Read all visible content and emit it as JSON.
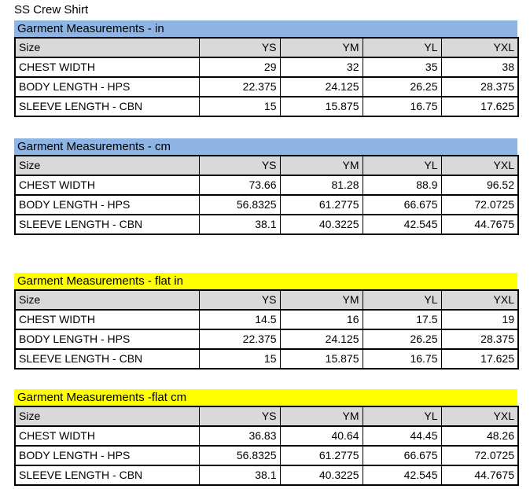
{
  "page_title": "SS Crew Shirt",
  "colors": {
    "section_header_blue": "#8DB4E2",
    "section_header_yellow": "#FFFF00",
    "column_header_gray": "#D9D9D9",
    "table_border": "#000000",
    "text": "#000000"
  },
  "tables": [
    {
      "title": "Garment Measurements - in",
      "header_style": "blue",
      "columns": [
        "Size",
        "YS",
        "YM",
        "YL",
        "YXL"
      ],
      "rows": [
        {
          "label": "CHEST WIDTH",
          "values": [
            "29",
            "32",
            "35",
            "38"
          ]
        },
        {
          "label": "BODY LENGTH - HPS",
          "values": [
            "22.375",
            "24.125",
            "26.25",
            "28.375"
          ]
        },
        {
          "label": "SLEEVE LENGTH - CBN",
          "values": [
            "15",
            "15.875",
            "16.75",
            "17.625"
          ]
        }
      ]
    },
    {
      "title": "Garment Measurements - cm",
      "header_style": "blue",
      "columns": [
        "Size",
        "YS",
        "YM",
        "YL",
        "YXL"
      ],
      "rows": [
        {
          "label": "CHEST WIDTH",
          "values": [
            "73.66",
            "81.28",
            "88.9",
            "96.52"
          ]
        },
        {
          "label": "BODY LENGTH - HPS",
          "values": [
            "56.8325",
            "61.2775",
            "66.675",
            "72.0725"
          ]
        },
        {
          "label": "SLEEVE LENGTH - CBN",
          "values": [
            "38.1",
            "40.3225",
            "42.545",
            "44.7675"
          ]
        }
      ]
    },
    {
      "title": "Garment Measurements - flat in",
      "header_style": "yellow",
      "columns": [
        "Size",
        "YS",
        "YM",
        "YL",
        "YXL"
      ],
      "rows": [
        {
          "label": "CHEST WIDTH",
          "values": [
            "14.5",
            "16",
            "17.5",
            "19"
          ]
        },
        {
          "label": "BODY LENGTH - HPS",
          "values": [
            "22.375",
            "24.125",
            "26.25",
            "28.375"
          ]
        },
        {
          "label": "SLEEVE LENGTH - CBN",
          "values": [
            "15",
            "15.875",
            "16.75",
            "17.625"
          ]
        }
      ]
    },
    {
      "title": "Garment Measurements -flat cm",
      "header_style": "yellow",
      "columns": [
        "Size",
        "YS",
        "YM",
        "YL",
        "YXL"
      ],
      "rows": [
        {
          "label": "CHEST WIDTH",
          "values": [
            "36.83",
            "40.64",
            "44.45",
            "48.26"
          ]
        },
        {
          "label": "BODY LENGTH - HPS",
          "values": [
            "56.8325",
            "61.2775",
            "66.675",
            "72.0725"
          ]
        },
        {
          "label": "SLEEVE LENGTH - CBN",
          "values": [
            "38.1",
            "40.3225",
            "42.545",
            "44.7675"
          ]
        }
      ]
    }
  ]
}
